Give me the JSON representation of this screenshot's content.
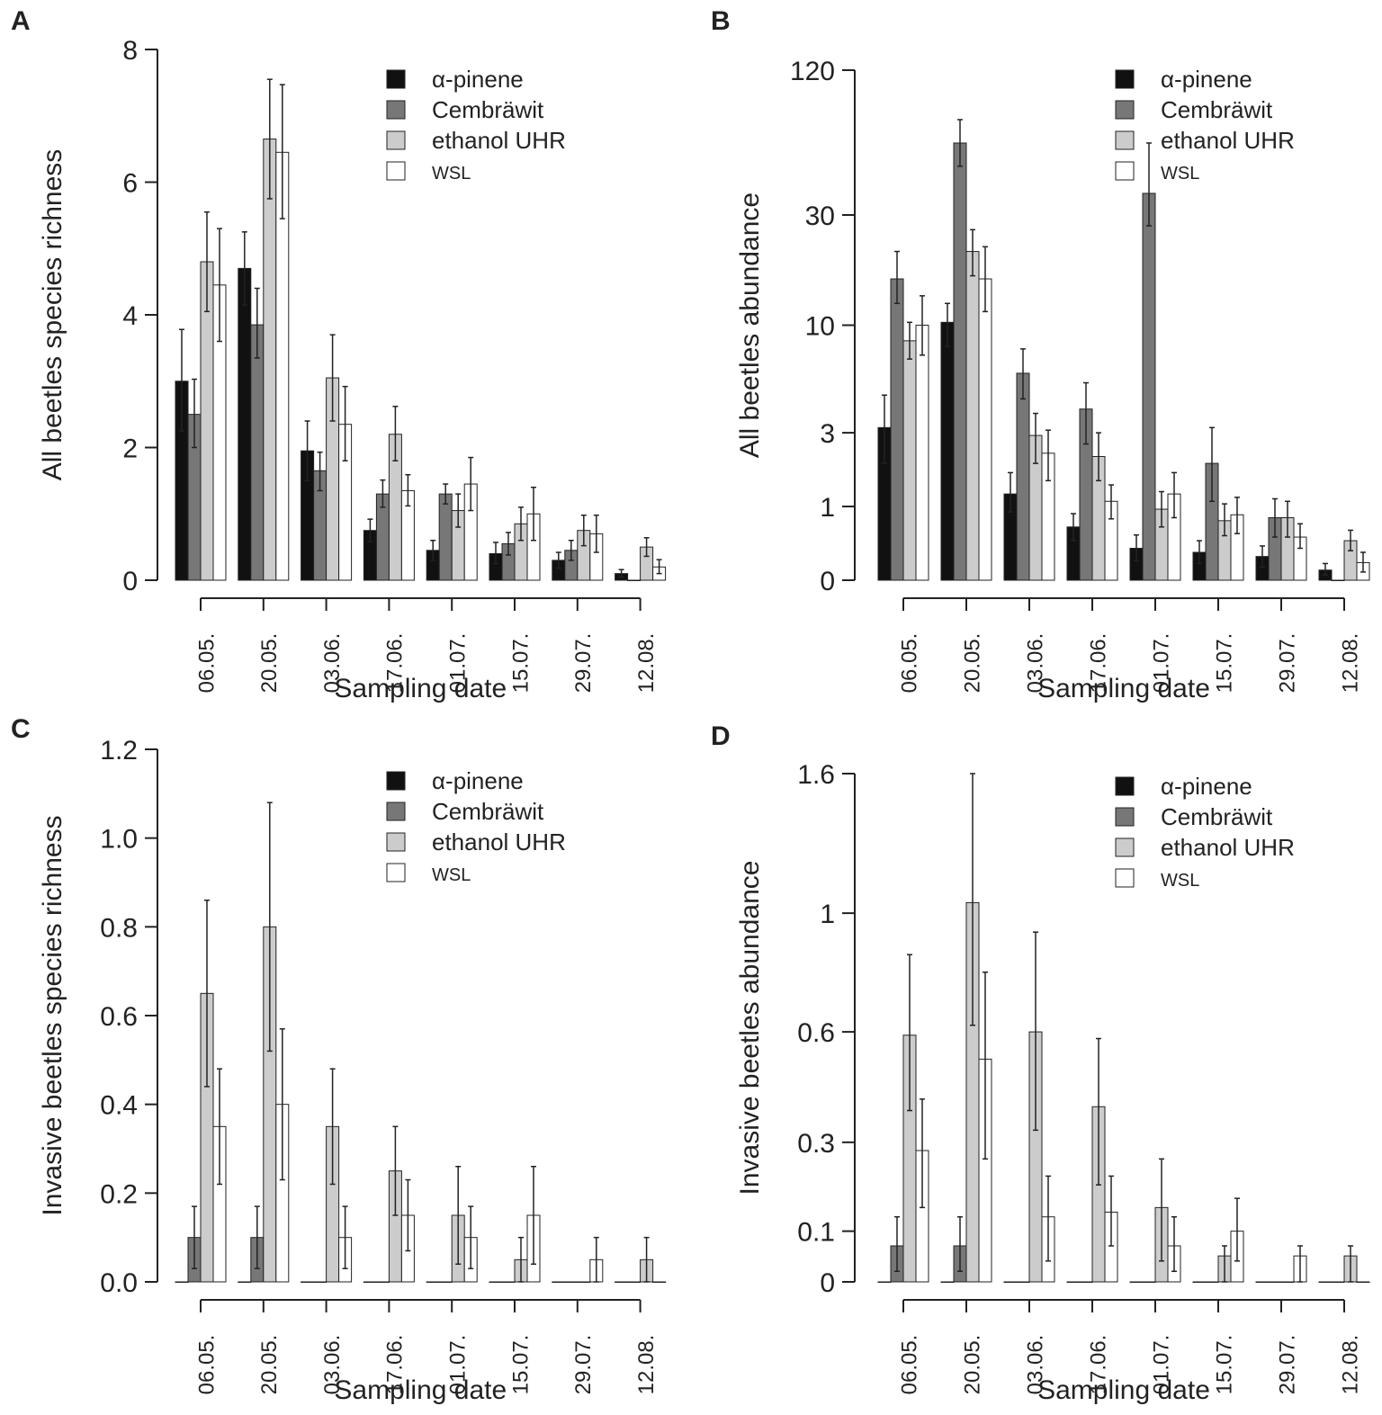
{
  "figure": {
    "legend": [
      {
        "label": "α-pinene",
        "color": "#111111"
      },
      {
        "label": "Cembräwit",
        "color": "#777777"
      },
      {
        "label": "ethanol UHR",
        "color": "#cccccc"
      },
      {
        "label": "WSL",
        "color": "#ffffff"
      }
    ],
    "colors": {
      "axis": "#222222",
      "bar_stroke": "#222222",
      "background": "#ffffff"
    }
  },
  "chart_data": [
    {
      "panel": "A",
      "type": "bar",
      "xlabel": "Sampling date",
      "ylabel": "All beetles species richness",
      "yscale": "linear",
      "ylim": [
        0,
        8
      ],
      "yticks": [
        {
          "v": 0,
          "label": "0"
        },
        {
          "v": 2,
          "label": "2"
        },
        {
          "v": 4,
          "label": "4"
        },
        {
          "v": 6,
          "label": "6"
        },
        {
          "v": 8,
          "label": "8"
        }
      ],
      "categories": [
        "06.05.",
        "20.05.",
        "03.06.",
        "17.06.",
        "01.07.",
        "15.07.",
        "29.07.",
        "12.08."
      ],
      "series": [
        {
          "name": "α-pinene",
          "values": [
            3.0,
            4.7,
            1.95,
            0.75,
            0.45,
            0.4,
            0.3,
            0.1
          ],
          "lo": [
            2.25,
            4.15,
            1.5,
            0.58,
            0.3,
            0.25,
            0.18,
            0.05
          ],
          "hi": [
            3.78,
            5.25,
            2.4,
            0.92,
            0.6,
            0.57,
            0.42,
            0.16
          ]
        },
        {
          "name": "Cembräwit",
          "values": [
            2.5,
            3.85,
            1.65,
            1.3,
            1.3,
            0.55,
            0.45,
            0
          ],
          "lo": [
            2.0,
            3.35,
            1.35,
            1.1,
            1.15,
            0.38,
            0.3,
            0
          ],
          "hi": [
            3.03,
            4.4,
            1.93,
            1.51,
            1.45,
            0.72,
            0.6,
            0
          ]
        },
        {
          "name": "ethanol UHR",
          "values": [
            4.8,
            6.65,
            3.05,
            2.2,
            1.05,
            0.85,
            0.75,
            0.5
          ],
          "lo": [
            4.05,
            5.75,
            2.4,
            1.8,
            0.8,
            0.6,
            0.52,
            0.36
          ],
          "hi": [
            5.55,
            7.55,
            3.7,
            2.62,
            1.3,
            1.1,
            0.98,
            0.64
          ]
        },
        {
          "name": "WSL",
          "values": [
            4.45,
            6.45,
            2.35,
            1.35,
            1.45,
            1.0,
            0.7,
            0.2
          ],
          "lo": [
            3.6,
            5.45,
            1.8,
            1.12,
            1.05,
            0.6,
            0.42,
            0.1
          ],
          "hi": [
            5.3,
            7.47,
            2.92,
            1.59,
            1.85,
            1.4,
            0.98,
            0.31
          ]
        }
      ]
    },
    {
      "panel": "B",
      "type": "bar",
      "xlabel": "Sampling date",
      "ylabel": "All beetles abundance",
      "yscale": "log1p",
      "ylim": [
        0,
        120
      ],
      "yticks": [
        {
          "v": 0,
          "label": "0"
        },
        {
          "v": 1,
          "label": "1"
        },
        {
          "v": 3,
          "label": "3"
        },
        {
          "v": 10,
          "label": "10"
        },
        {
          "v": 30,
          "label": "30"
        },
        {
          "v": 120,
          "label": "120"
        }
      ],
      "categories": [
        "06.05.",
        "20.05.",
        "03.06.",
        "17.06.",
        "01.07.",
        "15.07.",
        "29.07.",
        "12.08."
      ],
      "series": [
        {
          "name": "α-pinene",
          "values": [
            3.2,
            10.3,
            1.25,
            0.65,
            0.35,
            0.3,
            0.25,
            0.1
          ],
          "lo": [
            2.0,
            8.0,
            0.9,
            0.45,
            0.2,
            0.17,
            0.13,
            0.05
          ],
          "hi": [
            4.7,
            12.5,
            1.75,
            0.87,
            0.53,
            0.45,
            0.38,
            0.17
          ]
        },
        {
          "name": "Cembräwit",
          "values": [
            16.0,
            60.0,
            6.0,
            4.0,
            37.0,
            2.0,
            0.8,
            0
          ],
          "lo": [
            12.5,
            48.0,
            4.5,
            2.6,
            27.0,
            1.1,
            0.5,
            0
          ],
          "hi": [
            21.0,
            75.0,
            7.8,
            5.4,
            60.0,
            3.2,
            1.15,
            0
          ]
        },
        {
          "name": "ethanol UHR",
          "values": [
            8.5,
            21.0,
            2.9,
            2.2,
            0.95,
            0.75,
            0.8,
            0.45
          ],
          "lo": [
            7.0,
            16.5,
            2.0,
            1.55,
            0.65,
            0.52,
            0.5,
            0.32
          ],
          "hi": [
            10.3,
            26.0,
            3.8,
            3.0,
            1.3,
            1.05,
            1.1,
            0.6
          ]
        },
        {
          "name": "WSL",
          "values": [
            10.0,
            16.0,
            2.3,
            1.1,
            1.25,
            0.85,
            0.5,
            0.18
          ],
          "lo": [
            7.3,
            11.5,
            1.55,
            0.78,
            0.8,
            0.55,
            0.35,
            0.08
          ],
          "hi": [
            13.5,
            22.0,
            3.1,
            1.45,
            1.75,
            1.18,
            0.7,
            0.3
          ]
        }
      ]
    },
    {
      "panel": "C",
      "type": "bar",
      "xlabel": "Sampling date",
      "ylabel": "Invasive beetles species richness",
      "yscale": "linear",
      "ylim": [
        0,
        1.2
      ],
      "yticks": [
        {
          "v": 0,
          "label": "0.0"
        },
        {
          "v": 0.2,
          "label": "0.2"
        },
        {
          "v": 0.4,
          "label": "0.4"
        },
        {
          "v": 0.6,
          "label": "0.6"
        },
        {
          "v": 0.8,
          "label": "0.8"
        },
        {
          "v": 1.0,
          "label": "1.0"
        },
        {
          "v": 1.2,
          "label": "1.2"
        }
      ],
      "categories": [
        "06.05.",
        "20.05.",
        "03.06.",
        "17.06.",
        "01.07.",
        "15.07.",
        "29.07.",
        "12.08."
      ],
      "series": [
        {
          "name": "α-pinene",
          "values": [
            0,
            0,
            0,
            0,
            0,
            0,
            0,
            0
          ],
          "lo": [
            0,
            0,
            0,
            0,
            0,
            0,
            0,
            0
          ],
          "hi": [
            0,
            0,
            0,
            0,
            0,
            0,
            0,
            0
          ]
        },
        {
          "name": "Cembräwit",
          "values": [
            0.1,
            0.1,
            0,
            0,
            0,
            0,
            0,
            0
          ],
          "lo": [
            0.03,
            0.03,
            0,
            0,
            0,
            0,
            0,
            0
          ],
          "hi": [
            0.17,
            0.17,
            0,
            0,
            0,
            0,
            0,
            0
          ]
        },
        {
          "name": "ethanol UHR",
          "values": [
            0.65,
            0.8,
            0.35,
            0.25,
            0.15,
            0.05,
            0,
            0.05
          ],
          "lo": [
            0.44,
            0.52,
            0.22,
            0.15,
            0.04,
            0.0,
            0,
            0.0
          ],
          "hi": [
            0.86,
            1.08,
            0.48,
            0.35,
            0.26,
            0.1,
            0,
            0.1
          ]
        },
        {
          "name": "WSL",
          "values": [
            0.35,
            0.4,
            0.1,
            0.15,
            0.1,
            0.15,
            0.05,
            0
          ],
          "lo": [
            0.22,
            0.23,
            0.03,
            0.07,
            0.03,
            0.04,
            0.0,
            0
          ],
          "hi": [
            0.48,
            0.57,
            0.17,
            0.23,
            0.17,
            0.26,
            0.1,
            0
          ]
        }
      ]
    },
    {
      "panel": "D",
      "type": "bar",
      "xlabel": "Sampling date",
      "ylabel": "Invasive beetles abundance",
      "yscale": "log1p",
      "ylim": [
        0,
        1.6
      ],
      "yticks": [
        {
          "v": 0,
          "label": "0"
        },
        {
          "v": 0.1,
          "label": "0.1"
        },
        {
          "v": 0.3,
          "label": "0.3"
        },
        {
          "v": 0.6,
          "label": "0.6"
        },
        {
          "v": 1,
          "label": "1"
        },
        {
          "v": 1.6,
          "label": "1.6"
        }
      ],
      "categories": [
        "06.05.",
        "20.05.",
        "03.06.",
        "17.06.",
        "01.07.",
        "15.07.",
        "29.07.",
        "12.08."
      ],
      "series": [
        {
          "name": "α-pinene",
          "values": [
            0,
            0,
            0,
            0,
            0,
            0,
            0,
            0
          ],
          "lo": [
            0,
            0,
            0,
            0,
            0,
            0,
            0,
            0
          ],
          "hi": [
            0,
            0,
            0,
            0,
            0,
            0,
            0,
            0
          ]
        },
        {
          "name": "Cembräwit",
          "values": [
            0.07,
            0.07,
            0,
            0,
            0,
            0,
            0,
            0
          ],
          "lo": [
            0.02,
            0.02,
            0,
            0,
            0,
            0,
            0,
            0
          ],
          "hi": [
            0.13,
            0.13,
            0,
            0,
            0,
            0,
            0,
            0
          ]
        },
        {
          "name": "ethanol UHR",
          "values": [
            0.59,
            1.04,
            0.6,
            0.39,
            0.15,
            0.05,
            0,
            0.05
          ],
          "lo": [
            0.38,
            0.62,
            0.33,
            0.2,
            0.04,
            0.0,
            0,
            0.0
          ],
          "hi": [
            0.85,
            1.6,
            0.93,
            0.58,
            0.26,
            0.07,
            0,
            0.07
          ]
        },
        {
          "name": "WSL",
          "values": [
            0.28,
            0.52,
            0.13,
            0.14,
            0.07,
            0.1,
            0.05,
            0
          ],
          "lo": [
            0.15,
            0.26,
            0.04,
            0.07,
            0.02,
            0.04,
            0.0,
            0
          ],
          "hi": [
            0.41,
            0.79,
            0.22,
            0.22,
            0.13,
            0.17,
            0.07,
            0
          ]
        }
      ]
    }
  ]
}
